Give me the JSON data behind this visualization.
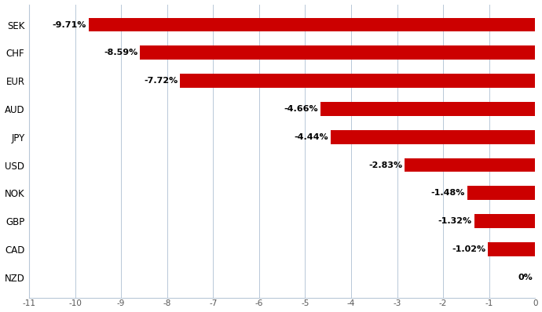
{
  "currencies": [
    "SEK",
    "CHF",
    "EUR",
    "AUD",
    "JPY",
    "USD",
    "NOK",
    "GBP",
    "CAD",
    "NZD"
  ],
  "values": [
    -9.71,
    -8.59,
    -7.72,
    -4.66,
    -4.44,
    -2.83,
    -1.48,
    -1.32,
    -1.02,
    0.0
  ],
  "labels": [
    "-9.71%",
    "-8.59%",
    "-7.72%",
    "-4.66%",
    "-4.44%",
    "-2.83%",
    "-1.48%",
    "-1.32%",
    "-1.02%",
    "0%"
  ],
  "bar_color": "#cc0000",
  "background_color": "#ffffff",
  "grid_color": "#b8c8d8",
  "xlim": [
    -11,
    0
  ],
  "xticks": [
    -11,
    -10,
    -9,
    -8,
    -7,
    -6,
    -5,
    -4,
    -3,
    -2,
    -1,
    0
  ],
  "bar_height": 0.5,
  "label_fontsize": 8.0,
  "ytick_fontsize": 8.5,
  "xtick_fontsize": 7.5
}
